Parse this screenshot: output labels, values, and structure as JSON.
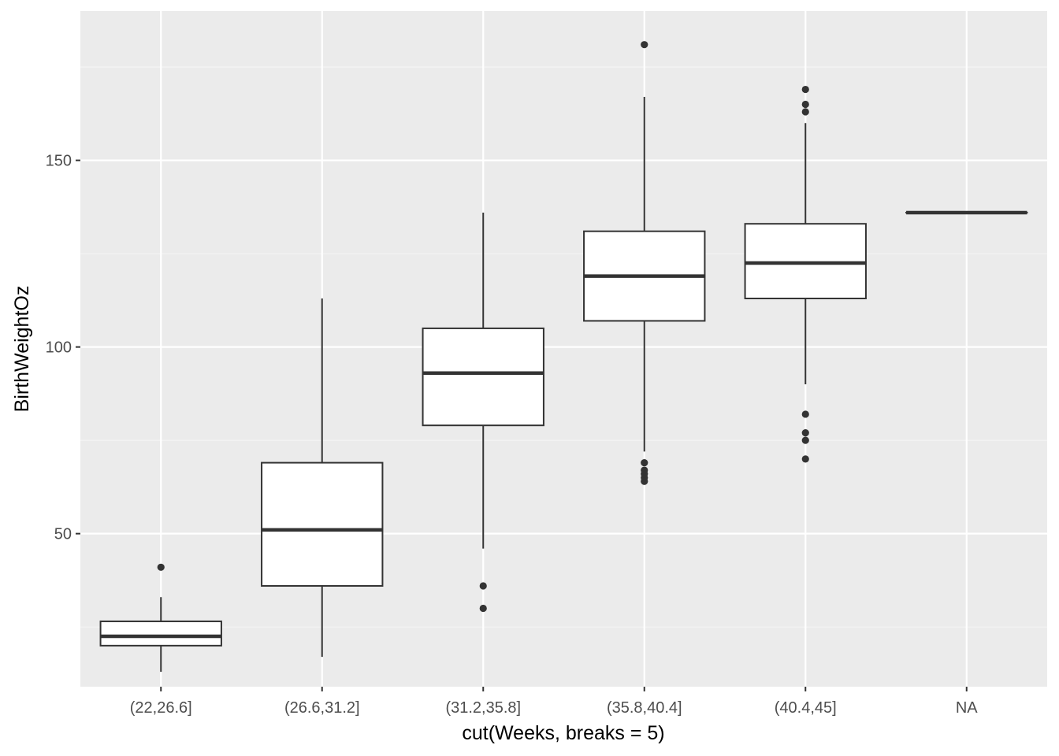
{
  "chart_data": {
    "type": "boxplot",
    "xlabel": "cut(Weeks, breaks = 5)",
    "ylabel": "BirthWeightOz",
    "categories": [
      "(22,26.6]",
      "(26.6,31.2]",
      "(31.2,35.8]",
      "(35.8,40.4]",
      "(40.4,45]",
      "NA"
    ],
    "yticks": [
      50,
      100,
      150
    ],
    "ylim": [
      9,
      190
    ],
    "grid": true,
    "boxes": [
      {
        "category": "(22,26.6]",
        "lower_whisker": 13,
        "q1": 20,
        "median": 22.5,
        "q3": 26.5,
        "upper_whisker": 33,
        "outliers": [
          41
        ]
      },
      {
        "category": "(26.6,31.2]",
        "lower_whisker": 17,
        "q1": 36,
        "median": 51,
        "q3": 69,
        "upper_whisker": 113,
        "outliers": []
      },
      {
        "category": "(31.2,35.8]",
        "lower_whisker": 46,
        "q1": 79,
        "median": 93,
        "q3": 105,
        "upper_whisker": 136,
        "outliers": [
          30,
          36
        ]
      },
      {
        "category": "(35.8,40.4]",
        "lower_whisker": 72,
        "q1": 107,
        "median": 119,
        "q3": 131,
        "upper_whisker": 167,
        "outliers": [
          64,
          65,
          66,
          67,
          69,
          181
        ]
      },
      {
        "category": "(40.4,45]",
        "lower_whisker": 90,
        "q1": 113,
        "median": 122.5,
        "q3": 133,
        "upper_whisker": 160,
        "outliers": [
          70,
          75,
          77,
          82,
          163,
          165,
          169
        ]
      },
      {
        "category": "NA",
        "lower_whisker": 136,
        "q1": 136,
        "median": 136,
        "q3": 136,
        "upper_whisker": 136,
        "outliers": []
      }
    ],
    "colors": {
      "panel_background": "#ebebeb",
      "grid_major": "#ffffff",
      "grid_minor": "#f5f5f5",
      "box_fill": "#ffffff",
      "box_line": "#333333",
      "outlier": "#333333"
    }
  }
}
